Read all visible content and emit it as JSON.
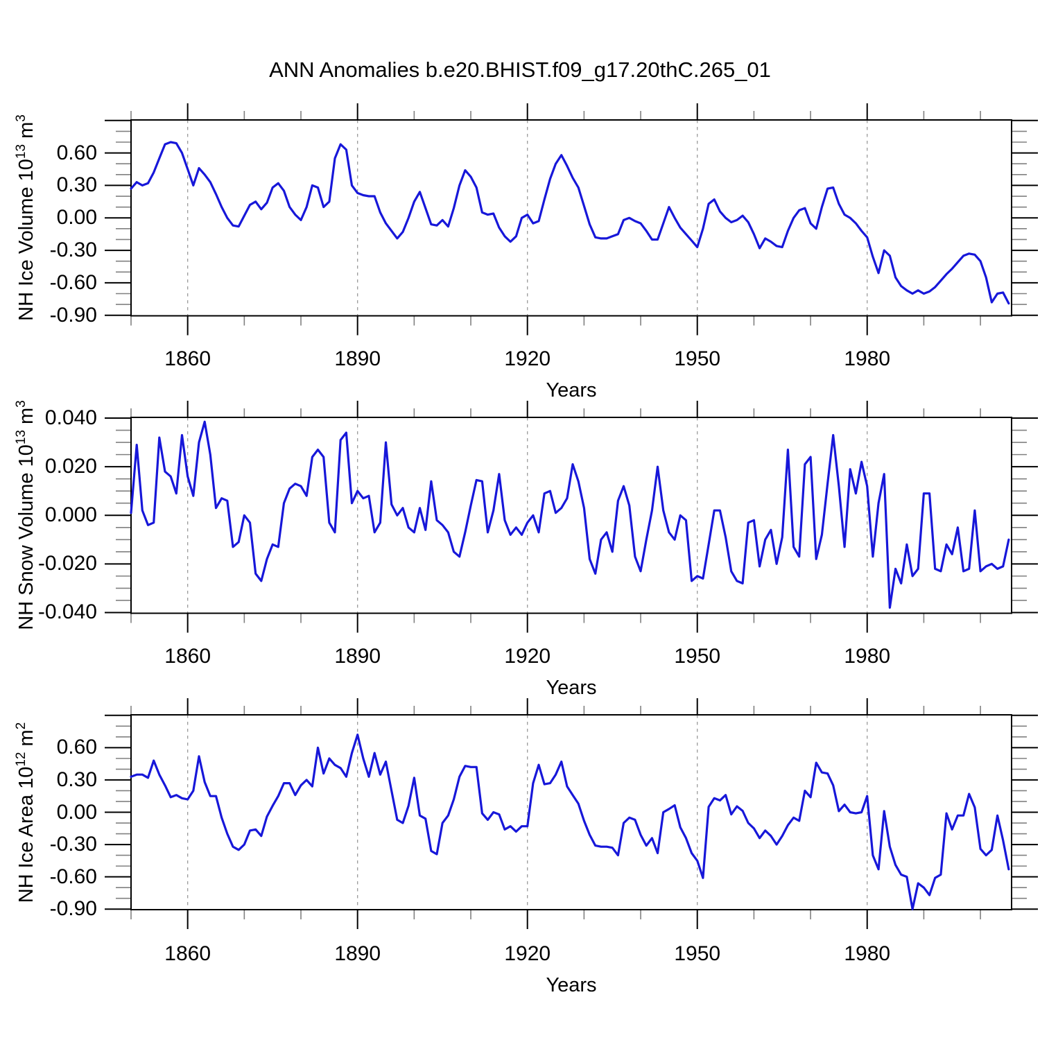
{
  "title": "ANN Anomalies b.e20.BHIST.f09_g17.20thC.265_01",
  "line_color": "#1717d9",
  "grid_color": "#999999",
  "axis_color": "#000000",
  "minor_tick_color": "#808080",
  "x_tick_labels": [
    "1860",
    "1890",
    "1920",
    "1950",
    "1980"
  ],
  "x_tick_years": [
    1860,
    1890,
    1920,
    1950,
    1980
  ],
  "years": [
    1850,
    1851,
    1852,
    1853,
    1854,
    1855,
    1856,
    1857,
    1858,
    1859,
    1860,
    1861,
    1862,
    1863,
    1864,
    1865,
    1866,
    1867,
    1868,
    1869,
    1870,
    1871,
    1872,
    1873,
    1874,
    1875,
    1876,
    1877,
    1878,
    1879,
    1880,
    1881,
    1882,
    1883,
    1884,
    1885,
    1886,
    1887,
    1888,
    1889,
    1890,
    1891,
    1892,
    1893,
    1894,
    1895,
    1896,
    1897,
    1898,
    1899,
    1900,
    1901,
    1902,
    1903,
    1904,
    1905,
    1906,
    1907,
    1908,
    1909,
    1910,
    1911,
    1912,
    1913,
    1914,
    1915,
    1916,
    1917,
    1918,
    1919,
    1920,
    1921,
    1922,
    1923,
    1924,
    1925,
    1926,
    1927,
    1928,
    1929,
    1930,
    1931,
    1932,
    1933,
    1934,
    1935,
    1936,
    1937,
    1938,
    1939,
    1940,
    1941,
    1942,
    1943,
    1944,
    1945,
    1946,
    1947,
    1948,
    1949,
    1950,
    1951,
    1952,
    1953,
    1954,
    1955,
    1956,
    1957,
    1958,
    1959,
    1960,
    1961,
    1962,
    1963,
    1964,
    1965,
    1966,
    1967,
    1968,
    1969,
    1970,
    1971,
    1972,
    1973,
    1974,
    1975,
    1976,
    1977,
    1978,
    1979,
    1980,
    1981,
    1982,
    1983,
    1984,
    1985,
    1986,
    1987,
    1988,
    1989,
    1990,
    1991,
    1992,
    1993,
    1994,
    1995,
    1996,
    1997,
    1998,
    1999,
    2000,
    2001,
    2002,
    2003,
    2004,
    2005
  ],
  "chart_data": [
    {
      "type": "line",
      "name": "nh-ice-volume",
      "ylabel": "NH Ice Volume 10^13 m^3",
      "ylabel_parts": {
        "prefix": "NH Ice Volume 10",
        "exp": "13",
        "unit": " m",
        "unit_exp": "3"
      },
      "xlabel": "Years",
      "xlim": [
        1850,
        2005.5
      ],
      "ylim": [
        -0.905,
        0.905
      ],
      "y_tick_labels": [
        "0.60",
        "0.30",
        "0.00",
        "-0.30",
        "-0.60",
        "-0.90"
      ],
      "y_tick_values": [
        0.6,
        0.3,
        0.0,
        -0.3,
        -0.6,
        -0.9
      ],
      "y_extra_major_ticks": [
        0.9
      ],
      "y_minor_step": 0.1,
      "grid_years": [
        1860,
        1890,
        1920,
        1950,
        1980
      ],
      "values": [
        0.27,
        0.33,
        0.3,
        0.32,
        0.42,
        0.55,
        0.68,
        0.7,
        0.69,
        0.6,
        0.45,
        0.3,
        0.46,
        0.4,
        0.33,
        0.22,
        0.1,
        0.0,
        -0.07,
        -0.08,
        0.02,
        0.12,
        0.15,
        0.08,
        0.14,
        0.28,
        0.32,
        0.25,
        0.1,
        0.03,
        -0.02,
        0.1,
        0.3,
        0.28,
        0.1,
        0.15,
        0.55,
        0.68,
        0.63,
        0.3,
        0.23,
        0.21,
        0.2,
        0.2,
        0.05,
        -0.05,
        -0.12,
        -0.19,
        -0.13,
        0.0,
        0.15,
        0.24,
        0.09,
        -0.06,
        -0.07,
        -0.02,
        -0.08,
        0.09,
        0.3,
        0.44,
        0.38,
        0.28,
        0.05,
        0.03,
        0.04,
        -0.09,
        -0.17,
        -0.22,
        -0.17,
        0.0,
        0.03,
        -0.05,
        -0.03,
        0.17,
        0.36,
        0.5,
        0.58,
        0.48,
        0.37,
        0.28,
        0.11,
        -0.06,
        -0.18,
        -0.19,
        -0.19,
        -0.17,
        -0.15,
        -0.02,
        0.0,
        -0.03,
        -0.05,
        -0.12,
        -0.2,
        -0.2,
        -0.05,
        0.1,
        0.0,
        -0.09,
        -0.15,
        -0.21,
        -0.27,
        -0.1,
        0.13,
        0.17,
        0.06,
        0.0,
        -0.04,
        -0.02,
        0.02,
        -0.04,
        -0.15,
        -0.28,
        -0.19,
        -0.22,
        -0.26,
        -0.27,
        -0.12,
        0.0,
        0.07,
        0.09,
        -0.05,
        -0.1,
        0.1,
        0.27,
        0.28,
        0.13,
        0.03,
        0.0,
        -0.05,
        -0.12,
        -0.18,
        -0.36,
        -0.51,
        -0.3,
        -0.35,
        -0.55,
        -0.63,
        -0.67,
        -0.7,
        -0.67,
        -0.7,
        -0.68,
        -0.64,
        -0.58,
        -0.52,
        -0.47,
        -0.41,
        -0.35,
        -0.33,
        -0.34,
        -0.4,
        -0.55,
        -0.78,
        -0.7,
        -0.69,
        -0.79
      ]
    },
    {
      "type": "line",
      "name": "nh-snow-volume",
      "ylabel": "NH Snow Volume 10^13 m^3",
      "ylabel_parts": {
        "prefix": "NH Snow Volume 10",
        "exp": "13",
        "unit": " m",
        "unit_exp": "3"
      },
      "xlabel": "Years",
      "xlim": [
        1850,
        2005.5
      ],
      "ylim": [
        -0.0403,
        0.0403
      ],
      "y_tick_labels": [
        "0.040",
        "0.020",
        "0.000",
        "-0.020",
        "-0.040"
      ],
      "y_tick_values": [
        0.04,
        0.02,
        0.0,
        -0.02,
        -0.04
      ],
      "y_extra_major_ticks": [],
      "y_minor_step": 0.005,
      "grid_years": [
        1860,
        1890,
        1920,
        1950,
        1980
      ],
      "values": [
        0.001,
        0.029,
        0.002,
        -0.004,
        -0.003,
        0.032,
        0.018,
        0.016,
        0.009,
        0.033,
        0.016,
        0.008,
        0.03,
        0.0385,
        0.025,
        0.003,
        0.007,
        0.006,
        -0.013,
        -0.011,
        0.0,
        -0.003,
        -0.024,
        -0.027,
        -0.018,
        -0.012,
        -0.013,
        0.005,
        0.011,
        0.013,
        0.012,
        0.008,
        0.024,
        0.027,
        0.024,
        -0.003,
        -0.007,
        0.031,
        0.034,
        0.005,
        0.01,
        0.007,
        0.008,
        -0.007,
        -0.003,
        0.03,
        0.0045,
        0.0,
        0.003,
        -0.005,
        -0.007,
        0.003,
        -0.006,
        0.014,
        -0.002,
        -0.004,
        -0.007,
        -0.015,
        -0.017,
        -0.007,
        0.004,
        0.0145,
        0.014,
        -0.007,
        0.002,
        0.017,
        -0.002,
        -0.008,
        -0.005,
        -0.008,
        -0.003,
        0.0,
        -0.007,
        0.009,
        0.01,
        0.001,
        0.003,
        0.007,
        0.021,
        0.014,
        0.003,
        -0.018,
        -0.024,
        -0.01,
        -0.007,
        -0.015,
        0.006,
        0.012,
        0.004,
        -0.017,
        -0.023,
        -0.01,
        0.002,
        0.02,
        0.002,
        -0.007,
        -0.01,
        0.0,
        -0.002,
        -0.027,
        -0.025,
        -0.026,
        -0.012,
        0.002,
        0.002,
        -0.009,
        -0.023,
        -0.027,
        -0.028,
        -0.003,
        -0.002,
        -0.021,
        -0.01,
        -0.006,
        -0.02,
        -0.009,
        0.027,
        -0.013,
        -0.017,
        0.021,
        0.024,
        -0.018,
        -0.008,
        0.013,
        0.033,
        0.012,
        -0.013,
        0.019,
        0.009,
        0.022,
        0.012,
        -0.017,
        0.005,
        0.017,
        -0.038,
        -0.022,
        -0.028,
        -0.012,
        -0.025,
        -0.022,
        0.009,
        0.009,
        -0.022,
        -0.023,
        -0.012,
        -0.016,
        -0.005,
        -0.023,
        -0.022,
        0.002,
        -0.023,
        -0.021,
        -0.02,
        -0.022,
        -0.021,
        -0.01
      ]
    },
    {
      "type": "line",
      "name": "nh-ice-area",
      "ylabel": "NH Ice Area 10^12 m^2",
      "ylabel_parts": {
        "prefix": "NH Ice Area 10",
        "exp": "12",
        "unit": " m",
        "unit_exp": "2"
      },
      "xlabel": "Years",
      "xlim": [
        1850,
        2005.5
      ],
      "ylim": [
        -0.905,
        0.905
      ],
      "y_tick_labels": [
        "0.60",
        "0.30",
        "0.00",
        "-0.30",
        "-0.60",
        "-0.90"
      ],
      "y_tick_values": [
        0.6,
        0.3,
        0.0,
        -0.3,
        -0.6,
        -0.9
      ],
      "y_extra_major_ticks": [
        0.9
      ],
      "y_minor_step": 0.1,
      "grid_years": [
        1860,
        1890,
        1920,
        1950,
        1980
      ],
      "values": [
        0.33,
        0.35,
        0.35,
        0.32,
        0.48,
        0.35,
        0.25,
        0.14,
        0.16,
        0.13,
        0.12,
        0.2,
        0.52,
        0.28,
        0.15,
        0.15,
        -0.05,
        -0.2,
        -0.32,
        -0.35,
        -0.3,
        -0.17,
        -0.16,
        -0.22,
        -0.04,
        0.06,
        0.15,
        0.27,
        0.27,
        0.16,
        0.25,
        0.3,
        0.24,
        0.6,
        0.36,
        0.5,
        0.44,
        0.41,
        0.33,
        0.55,
        0.72,
        0.5,
        0.33,
        0.55,
        0.35,
        0.47,
        0.2,
        -0.07,
        -0.1,
        0.06,
        0.32,
        -0.03,
        -0.06,
        -0.36,
        -0.39,
        -0.1,
        -0.03,
        0.12,
        0.33,
        0.43,
        0.42,
        0.42,
        -0.01,
        -0.07,
        0.0,
        -0.02,
        -0.16,
        -0.13,
        -0.18,
        -0.13,
        -0.13,
        0.27,
        0.44,
        0.26,
        0.27,
        0.35,
        0.47,
        0.24,
        0.16,
        0.08,
        -0.08,
        -0.21,
        -0.31,
        -0.32,
        -0.32,
        -0.33,
        -0.4,
        -0.1,
        -0.05,
        -0.07,
        -0.21,
        -0.31,
        -0.24,
        -0.38,
        0.0,
        0.03,
        0.065,
        -0.14,
        -0.24,
        -0.38,
        -0.45,
        -0.61,
        0.05,
        0.13,
        0.11,
        0.16,
        -0.02,
        0.055,
        0.013,
        -0.1,
        -0.15,
        -0.24,
        -0.17,
        -0.22,
        -0.3,
        -0.22,
        -0.12,
        -0.05,
        -0.08,
        0.2,
        0.14,
        0.46,
        0.37,
        0.36,
        0.25,
        0.01,
        0.07,
        0.0,
        -0.01,
        0.0,
        0.15,
        -0.4,
        -0.53,
        0.01,
        -0.32,
        -0.49,
        -0.58,
        -0.6,
        -0.9,
        -0.66,
        -0.7,
        -0.77,
        -0.61,
        -0.58,
        -0.01,
        -0.16,
        -0.03,
        -0.03,
        0.17,
        0.045,
        -0.34,
        -0.4,
        -0.35,
        -0.03,
        -0.26,
        -0.53
      ]
    }
  ]
}
